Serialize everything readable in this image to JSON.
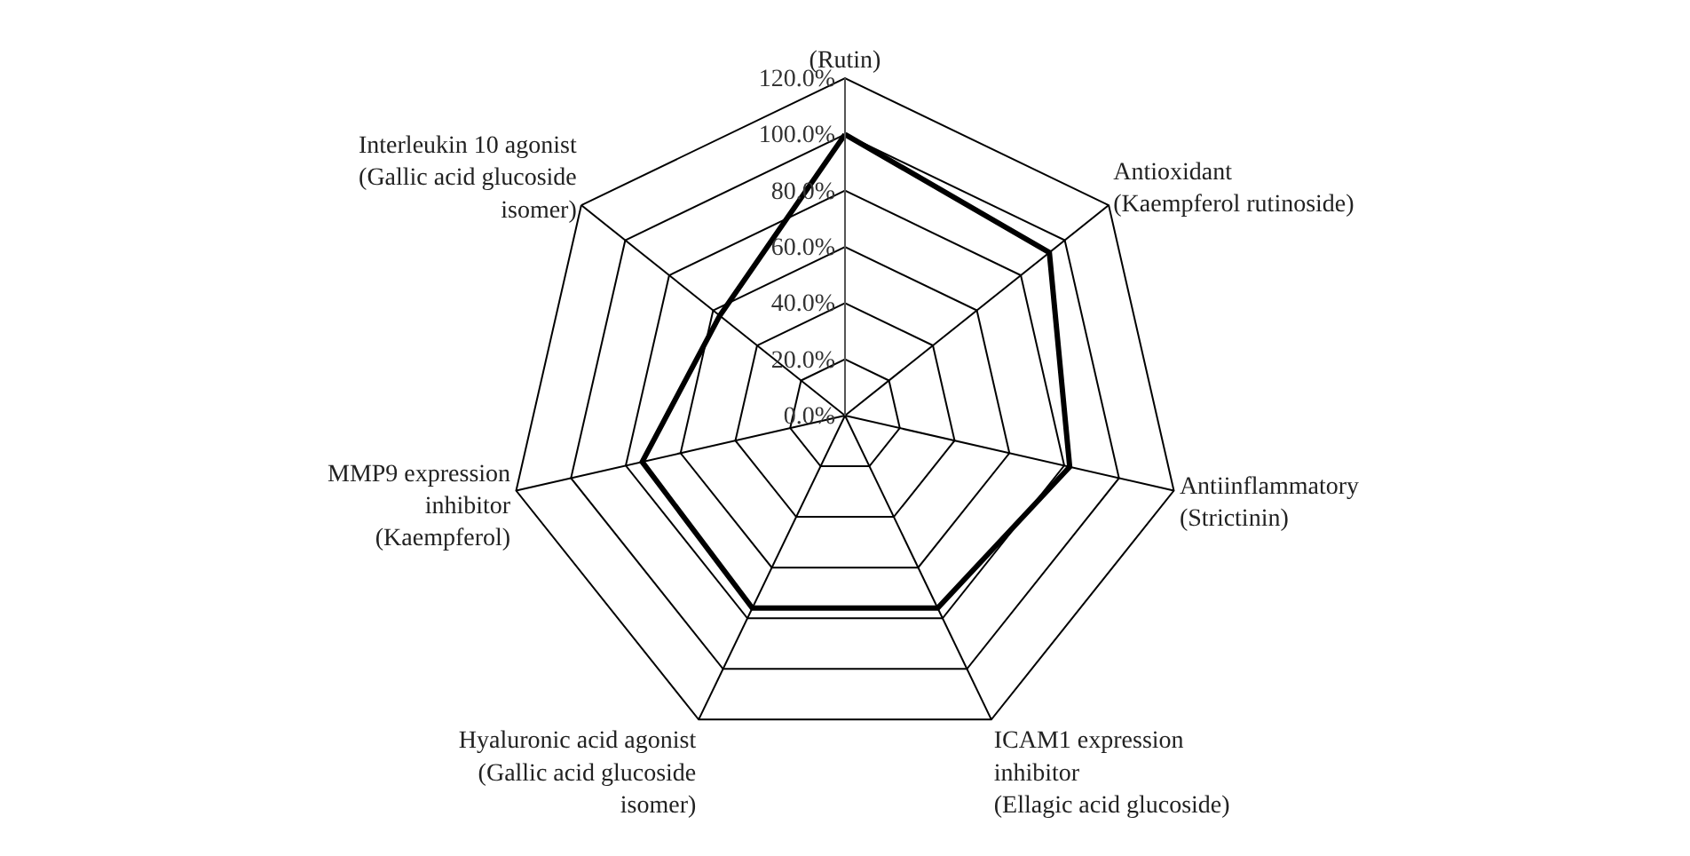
{
  "chart_data": {
    "type": "radar",
    "categories": [
      "(Rutin)",
      "Antioxidant (Kaempferol rutinoside)",
      "Antiinflammatory (Strictinin)",
      "ICAM1 expression inhibitor (Ellagic acid glucoside)",
      "Hyaluronic acid agonist (Gallic acid glucoside isomer)",
      "MMP9 expression inhibitor (Kaempferol)",
      "Interleukin 10 agonist (Gallic acid glucoside isomer)"
    ],
    "series": [
      {
        "color": "#000000",
        "values": [
          100,
          93,
          82,
          76,
          76,
          74,
          57
        ]
      }
    ],
    "ylim": [
      0,
      120
    ],
    "yticks": [
      {
        "value": 0,
        "label": "0.0%"
      },
      {
        "value": 20,
        "label": "20.0%"
      },
      {
        "value": 40,
        "label": "40.0%"
      },
      {
        "value": 60,
        "label": "60.0%"
      },
      {
        "value": 80,
        "label": "80.0%"
      },
      {
        "value": 100,
        "label": "100.0%"
      },
      {
        "value": 120,
        "label": "120.0%"
      }
    ],
    "grid": true,
    "marker": "none",
    "line_style": "solid"
  }
}
